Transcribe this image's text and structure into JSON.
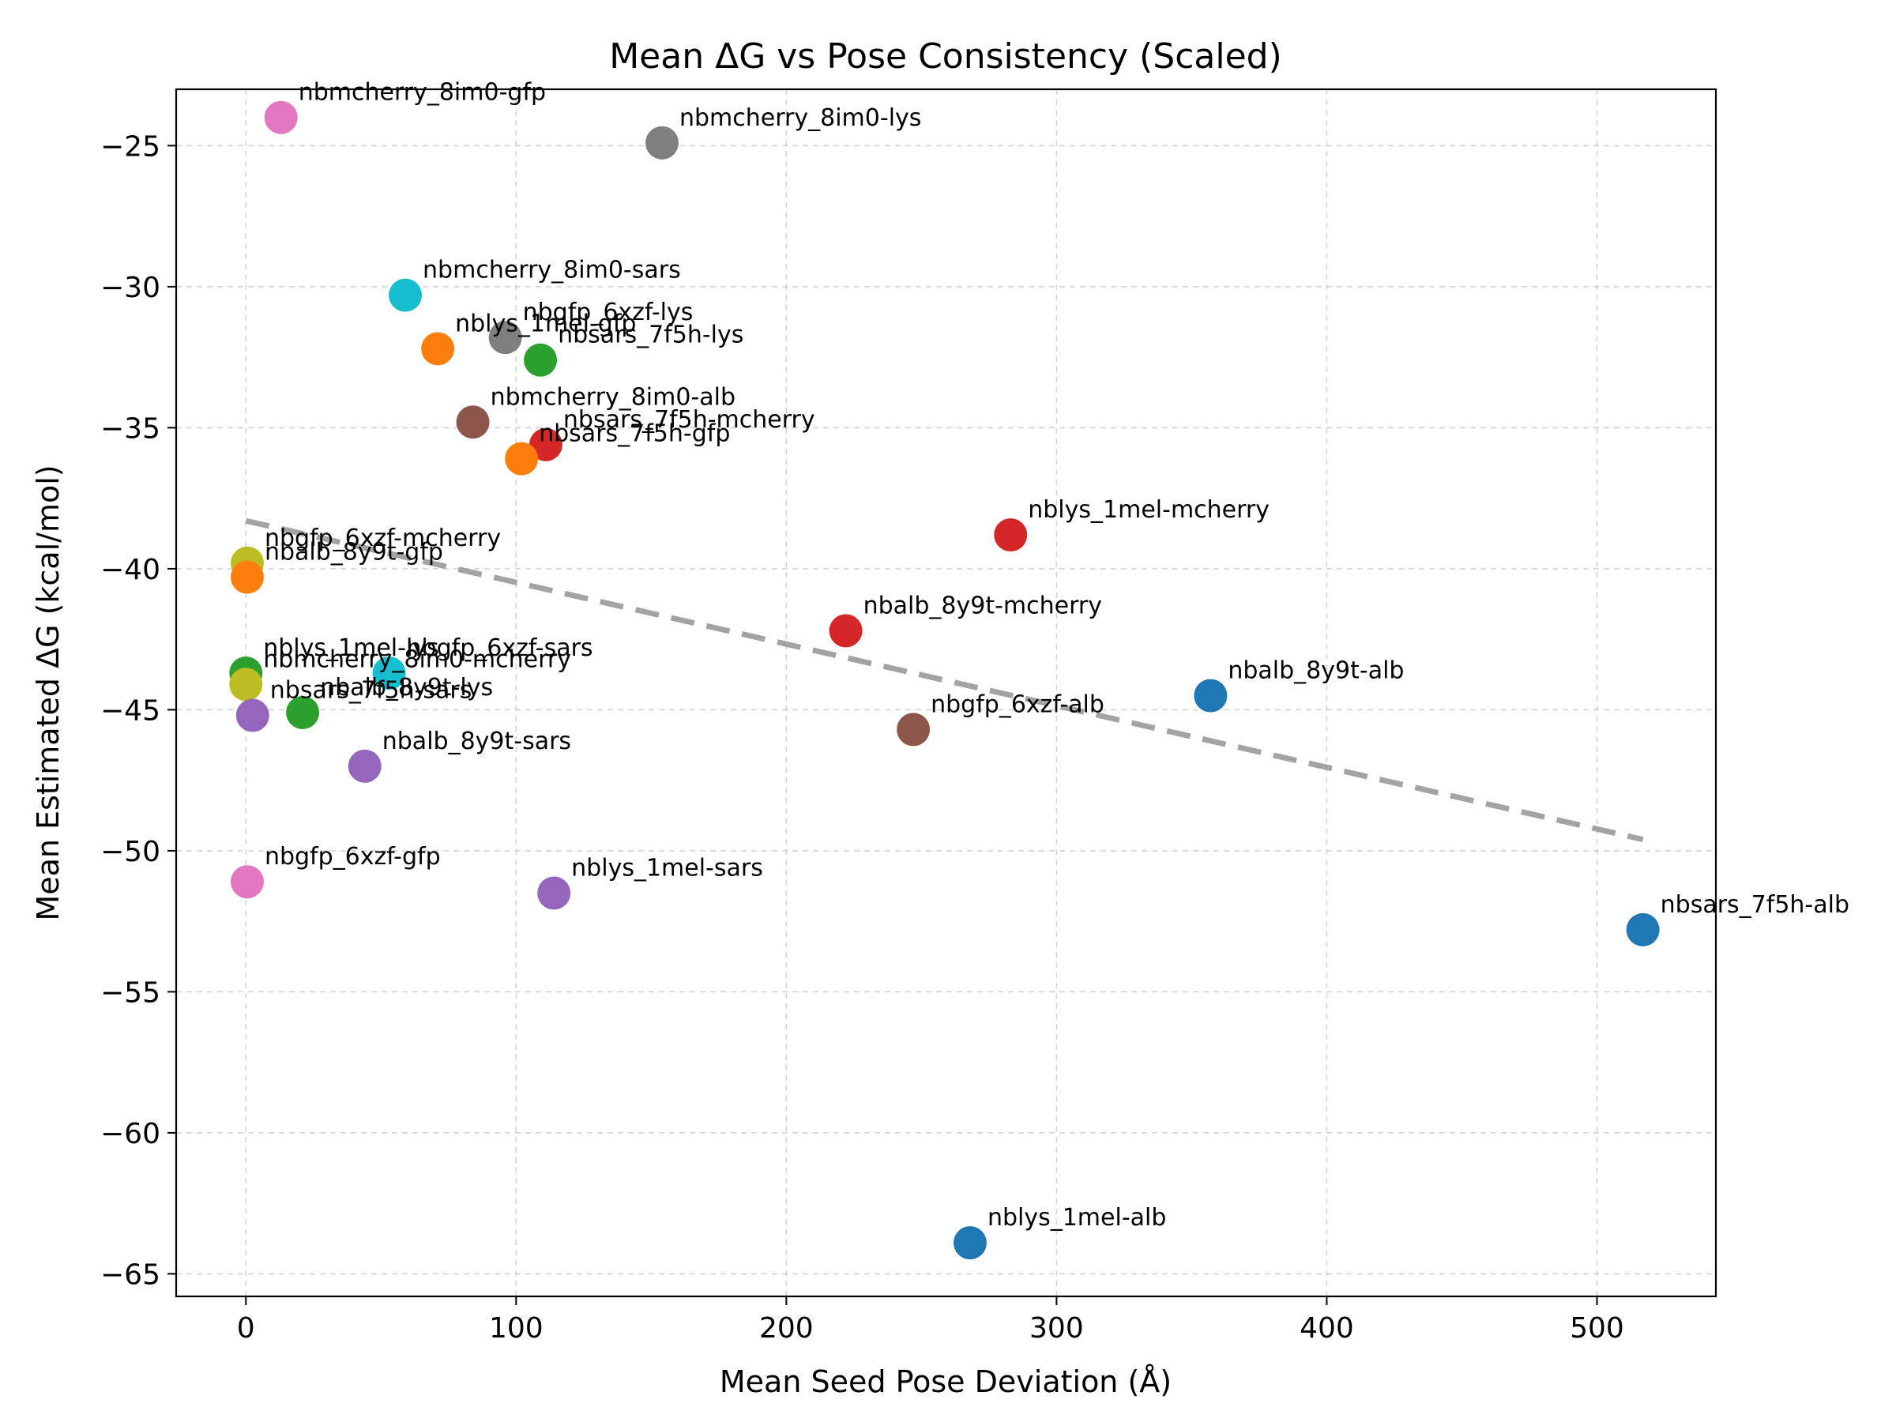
{
  "chart_data": {
    "type": "scatter",
    "title": "Mean ΔG vs Pose Consistency (Scaled)",
    "xlabel": "Mean Seed Pose Deviation (Å)",
    "ylabel": "Mean Estimated ΔG (kcal/mol)",
    "xlim": [
      -25.8,
      544
    ],
    "ylim": [
      -65.8,
      -23.0
    ],
    "xticks": [
      0,
      100,
      200,
      300,
      400,
      500
    ],
    "xtick_labels": [
      "0",
      "100",
      "200",
      "300",
      "400",
      "500"
    ],
    "yticks": [
      -25,
      -30,
      -35,
      -40,
      -45,
      -50,
      -55,
      -60,
      -65
    ],
    "ytick_labels": [
      "−25",
      "−30",
      "−35",
      "−40",
      "−45",
      "−50",
      "−55",
      "−60",
      "−65"
    ],
    "grid": true,
    "trendline": {
      "style": "dashed",
      "color": "#a3a3a3",
      "x": [
        0,
        517
      ],
      "y": [
        -38.3,
        -49.6
      ]
    },
    "points": [
      {
        "label": "nbmcherry_8im0-gfp",
        "x": 13,
        "y": -24.0,
        "color": "#e377c2"
      },
      {
        "label": "nbmcherry_8im0-lys",
        "x": 154,
        "y": -24.9,
        "color": "#7f7f7f"
      },
      {
        "label": "nbmcherry_8im0-sars",
        "x": 59,
        "y": -30.3,
        "color": "#17becf"
      },
      {
        "label": "nblys_1mel-gfp",
        "x": 71,
        "y": -32.2,
        "color": "#ff7f0e"
      },
      {
        "label": "nbgfp_6xzf-lys",
        "x": 96,
        "y": -31.8,
        "color": "#7f7f7f"
      },
      {
        "label": "nbsars_7f5h-lys",
        "x": 109,
        "y": -32.6,
        "color": "#2ca02c"
      },
      {
        "label": "nbmcherry_8im0-alb",
        "x": 84,
        "y": -34.8,
        "color": "#8c564b"
      },
      {
        "label": "nbsars_7f5h-mcherry",
        "x": 111,
        "y": -35.6,
        "color": "#d62728"
      },
      {
        "label": "nbsars_7f5h-gfp",
        "x": 102,
        "y": -36.1,
        "color": "#ff7f0e"
      },
      {
        "label": "nblys_1mel-mcherry",
        "x": 283,
        "y": -38.8,
        "color": "#d62728"
      },
      {
        "label": "nbgfp_6xzf-mcherry",
        "x": 0.5,
        "y": -39.8,
        "color": "#bcbd22"
      },
      {
        "label": "nbalb_8y9t-gfp",
        "x": 0.5,
        "y": -40.3,
        "color": "#ff7f0e"
      },
      {
        "label": "nbalb_8y9t-mcherry",
        "x": 222,
        "y": -42.2,
        "color": "#d62728"
      },
      {
        "label": "nblys_1mel-lys",
        "x": 0,
        "y": -43.7,
        "color": "#2ca02c"
      },
      {
        "label": "nbgfp_6xzf-sars",
        "x": 53,
        "y": -43.7,
        "color": "#17becf"
      },
      {
        "label": "nbmcherry_8im0-mcherry",
        "x": 0,
        "y": -44.1,
        "color": "#bcbd22"
      },
      {
        "label": "nbalb_8y9t-alb",
        "x": 357,
        "y": -44.5,
        "color": "#1f77b4"
      },
      {
        "label": "nbsars_7f5h-sars",
        "x": 2.5,
        "y": -45.2,
        "color": "#9467bd"
      },
      {
        "label": "nbalb_8y9t-lys",
        "x": 21,
        "y": -45.1,
        "color": "#2ca02c"
      },
      {
        "label": "nbgfp_6xzf-alb",
        "x": 247,
        "y": -45.7,
        "color": "#8c564b"
      },
      {
        "label": "nbalb_8y9t-sars",
        "x": 44,
        "y": -47.0,
        "color": "#9467bd"
      },
      {
        "label": "nbgfp_6xzf-gfp",
        "x": 0.5,
        "y": -51.1,
        "color": "#e377c2"
      },
      {
        "label": "nblys_1mel-sars",
        "x": 114,
        "y": -51.5,
        "color": "#9467bd"
      },
      {
        "label": "nbsars_7f5h-alb",
        "x": 517,
        "y": -52.8,
        "color": "#1f77b4"
      },
      {
        "label": "nblys_1mel-alb",
        "x": 268,
        "y": -63.9,
        "color": "#1f77b4"
      }
    ]
  }
}
